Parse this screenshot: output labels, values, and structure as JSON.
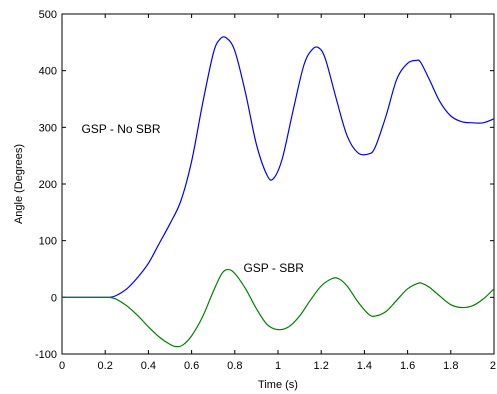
{
  "chart_data": {
    "type": "line",
    "title": "",
    "xlabel": "Time (s)",
    "ylabel": "Angle (Degrees)",
    "xlim": [
      0,
      2
    ],
    "ylim": [
      -100,
      500
    ],
    "xticks": [
      0,
      0.2,
      0.4,
      0.6,
      0.8,
      1,
      1.2,
      1.4,
      1.6,
      1.8,
      2
    ],
    "xtick_labels": [
      "0",
      "0.2",
      "0.4",
      "0.6",
      "0.8",
      "1",
      "1.2",
      "1.4",
      "1.6",
      "1.8",
      "2"
    ],
    "yticks": [
      -100,
      0,
      100,
      200,
      300,
      400,
      500
    ],
    "ytick_labels": [
      "-100",
      "0",
      "100",
      "200",
      "300",
      "400",
      "500"
    ],
    "grid": false,
    "series": [
      {
        "name": "GSP - No SBR",
        "color": "#0000ff",
        "x": [
          0,
          0.1,
          0.2,
          0.22,
          0.25,
          0.3,
          0.35,
          0.4,
          0.45,
          0.5,
          0.55,
          0.6,
          0.65,
          0.7,
          0.73,
          0.76,
          0.8,
          0.85,
          0.9,
          0.95,
          0.98,
          1.02,
          1.07,
          1.12,
          1.16,
          1.19,
          1.22,
          1.27,
          1.32,
          1.37,
          1.42,
          1.45,
          1.5,
          1.55,
          1.6,
          1.64,
          1.66,
          1.7,
          1.75,
          1.8,
          1.85,
          1.9,
          1.95,
          2.0
        ],
        "y": [
          0,
          0,
          0,
          0,
          3,
          15,
          35,
          60,
          95,
          130,
          170,
          240,
          340,
          430,
          455,
          458,
          435,
          360,
          270,
          215,
          210,
          245,
          330,
          410,
          438,
          440,
          420,
          350,
          285,
          255,
          253,
          265,
          320,
          385,
          413,
          418,
          415,
          385,
          345,
          320,
          310,
          308,
          308,
          315
        ]
      },
      {
        "name": "GSP - SBR",
        "color": "#008000",
        "x": [
          0,
          0.1,
          0.2,
          0.22,
          0.25,
          0.3,
          0.35,
          0.4,
          0.45,
          0.5,
          0.53,
          0.56,
          0.6,
          0.65,
          0.7,
          0.74,
          0.77,
          0.8,
          0.85,
          0.9,
          0.95,
          1.0,
          1.05,
          1.1,
          1.15,
          1.2,
          1.25,
          1.28,
          1.32,
          1.37,
          1.42,
          1.45,
          1.5,
          1.55,
          1.6,
          1.65,
          1.67,
          1.7,
          1.75,
          1.8,
          1.85,
          1.9,
          1.95,
          2.0
        ],
        "y": [
          0,
          0,
          0,
          0,
          -3,
          -15,
          -32,
          -52,
          -70,
          -83,
          -87,
          -84,
          -68,
          -35,
          10,
          42,
          49,
          42,
          15,
          -20,
          -48,
          -57,
          -52,
          -33,
          -5,
          20,
          33,
          33,
          20,
          -8,
          -30,
          -33,
          -25,
          -5,
          15,
          25,
          24,
          18,
          2,
          -13,
          -18,
          -15,
          -3,
          15
        ]
      }
    ],
    "annotations": [
      {
        "text": "GSP - No SBR",
        "x": 0.09,
        "y": 290
      },
      {
        "text": "GSP - SBR",
        "x": 0.84,
        "y": 45
      }
    ]
  }
}
